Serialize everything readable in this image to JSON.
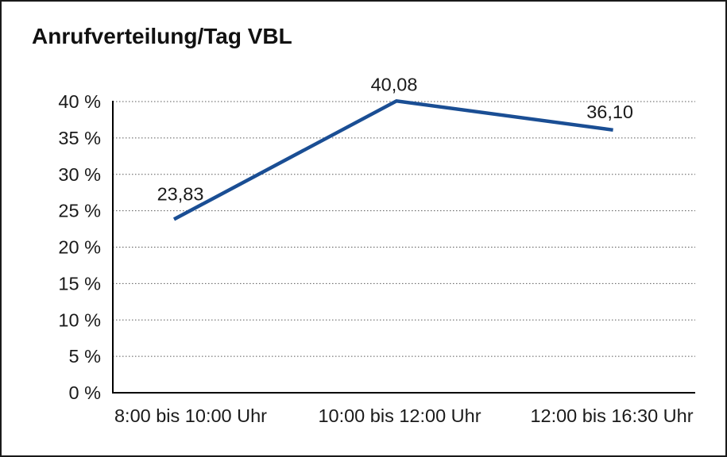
{
  "chart": {
    "title": "Anrufverteilung/Tag VBL"
  },
  "chart_data": {
    "type": "line",
    "title": "Anrufverteilung/Tag VBL",
    "categories": [
      "8:00 bis 10:00 Uhr",
      "10:00 bis 12:00 Uhr",
      "12:00 bis 16:30 Uhr"
    ],
    "values": [
      23.83,
      40.08,
      36.1
    ],
    "point_labels": [
      "23,83",
      "40,08",
      "36,10"
    ],
    "xlabel": "",
    "ylabel": "",
    "ylim": [
      0,
      40
    ],
    "ytick_step": 5,
    "ytick_labels": [
      "0 %",
      "5 %",
      "10 %",
      "15 %",
      "20 %",
      "25 %",
      "30 %",
      "35 %",
      "40 %"
    ],
    "grid": "horizontal-dotted",
    "legend": "none",
    "colors": {
      "line": "#1A4E94",
      "axis": "#000000",
      "gridline": "#5a5a5a",
      "text": "#1a1a1a"
    }
  }
}
